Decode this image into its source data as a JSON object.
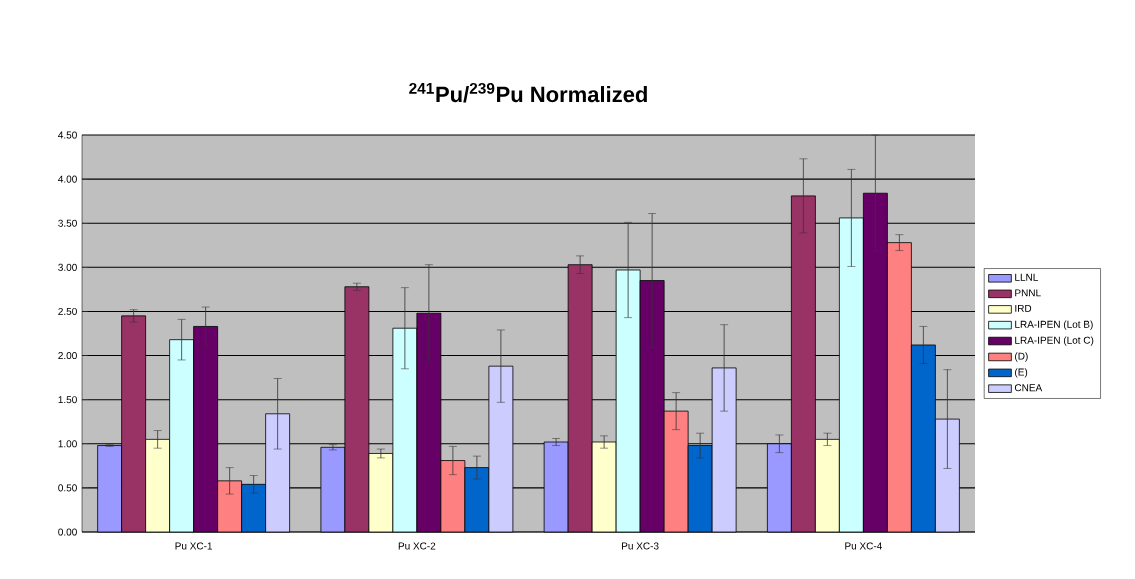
{
  "chart_data": {
    "type": "bar",
    "title": "$^{241}$Pu/$^{239}$Pu Normalized",
    "categories": [
      "Pu XC-1",
      "Pu XC-2",
      "Pu XC-3",
      "Pu XC-4"
    ],
    "series": [
      {
        "name": "LLNL",
        "color": "#9999ff",
        "values": [
          0.98,
          0.96,
          1.02,
          1.0
        ],
        "errors": [
          0.01,
          0.03,
          0.04,
          0.1
        ]
      },
      {
        "name": "PNNL",
        "color": "#993366",
        "values": [
          2.45,
          2.78,
          3.03,
          3.81
        ],
        "errors": [
          0.07,
          0.04,
          0.1,
          0.42
        ]
      },
      {
        "name": "IRD",
        "color": "#ffffcc",
        "values": [
          1.05,
          0.89,
          1.02,
          1.05
        ],
        "errors": [
          0.1,
          0.05,
          0.07,
          0.07
        ]
      },
      {
        "name": "LRA-IPEN (Lot B)",
        "color": "#ccffff",
        "values": [
          2.18,
          2.31,
          2.97,
          3.56
        ],
        "errors": [
          0.23,
          0.46,
          0.54,
          0.55
        ]
      },
      {
        "name": "LRA-IPEN (Lot C)",
        "color": "#660066",
        "values": [
          2.33,
          2.48,
          2.85,
          3.84
        ],
        "errors": [
          0.22,
          0.55,
          0.76,
          0.66
        ]
      },
      {
        "name": "(D)",
        "color": "#ff8080",
        "values": [
          0.58,
          0.81,
          1.37,
          3.28
        ],
        "errors": [
          0.15,
          0.16,
          0.21,
          0.09
        ]
      },
      {
        "name": "(E)",
        "color": "#0066cc",
        "values": [
          0.54,
          0.73,
          0.98,
          2.12
        ],
        "errors": [
          0.1,
          0.13,
          0.14,
          0.21
        ]
      },
      {
        "name": "CNEA",
        "color": "#ccccff",
        "values": [
          1.34,
          1.88,
          1.86,
          1.28
        ],
        "errors": [
          0.4,
          0.41,
          0.49,
          0.56
        ]
      }
    ],
    "ylim": [
      0,
      4.5
    ],
    "yticks": [
      {
        "value": 0,
        "label": "0.00"
      },
      {
        "value": 0.5,
        "label": "0.50"
      },
      {
        "value": 1,
        "label": "1.00"
      },
      {
        "value": 1.5,
        "label": "1.50"
      },
      {
        "value": 2,
        "label": "2.00"
      },
      {
        "value": 2.5,
        "label": "2.50"
      },
      {
        "value": 3,
        "label": "3.00"
      },
      {
        "value": 3.5,
        "label": "3.50"
      },
      {
        "value": 4,
        "label": "4.00"
      },
      {
        "value": 4.5,
        "label": "4.50"
      }
    ],
    "grid": "y",
    "legend": "right"
  }
}
